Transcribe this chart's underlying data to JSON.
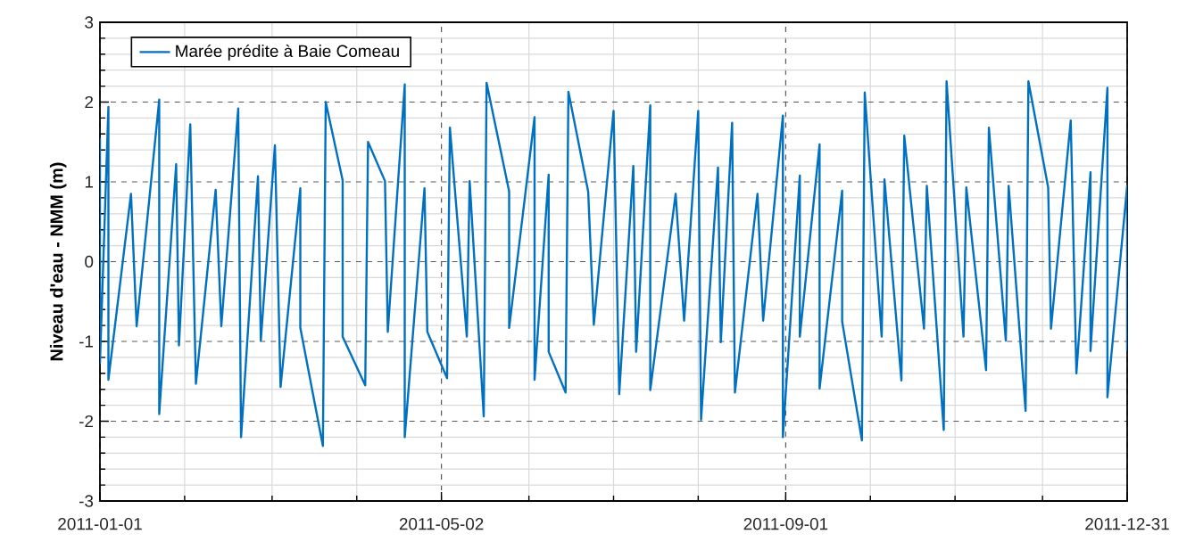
{
  "chart_data": {
    "type": "line",
    "ylabel": "Niveau d'eau - NMM (m)",
    "xlim": [
      "2011-01-01",
      "2011-12-31"
    ],
    "ylim": [
      -3,
      3
    ],
    "xticks": [
      {
        "value": "2011-01-01",
        "label": "2011-01-01"
      },
      {
        "value": "2011-01-31",
        "label": null
      },
      {
        "value": "2011-03-03",
        "label": null
      },
      {
        "value": "2011-04-02",
        "label": null
      },
      {
        "value": "2011-05-02",
        "label": "2011-05-02"
      },
      {
        "value": "2011-06-02",
        "label": null
      },
      {
        "value": "2011-07-02",
        "label": null
      },
      {
        "value": "2011-08-01",
        "label": null
      },
      {
        "value": "2011-09-01",
        "label": "2011-09-01"
      },
      {
        "value": "2011-10-01",
        "label": null
      },
      {
        "value": "2011-10-31",
        "label": null
      },
      {
        "value": "2011-12-01",
        "label": null
      },
      {
        "value": "2011-12-31",
        "label": "2011-12-31"
      }
    ],
    "yticks": [
      -3,
      {
        "value": -2.8,
        "label": null
      },
      {
        "value": -2.6,
        "label": null
      },
      {
        "value": -2.4,
        "label": null
      },
      {
        "value": -2.2,
        "label": null
      },
      -2,
      {
        "value": -1.8,
        "label": null
      },
      {
        "value": -1.6,
        "label": null
      },
      {
        "value": -1.4,
        "label": null
      },
      {
        "value": -1.2,
        "label": null
      },
      -1,
      {
        "value": -0.8,
        "label": null
      },
      {
        "value": -0.6,
        "label": null
      },
      {
        "value": -0.4,
        "label": null
      },
      {
        "value": -0.2,
        "label": null
      },
      0,
      {
        "value": 0.2,
        "label": null
      },
      {
        "value": 0.4,
        "label": null
      },
      {
        "value": 0.6,
        "label": null
      },
      {
        "value": 0.8,
        "label": null
      },
      1,
      {
        "value": 1.2,
        "label": null
      },
      {
        "value": 1.4,
        "label": null
      },
      {
        "value": 1.6,
        "label": null
      },
      {
        "value": 1.8,
        "label": null
      },
      2,
      {
        "value": 2.2,
        "label": null
      },
      {
        "value": 2.4,
        "label": null
      },
      {
        "value": 2.6,
        "label": null
      },
      {
        "value": 2.8,
        "label": null
      },
      3
    ],
    "grid": true,
    "legend": "top left",
    "series": [
      {
        "name": "Marée prédite à Baie Comeau",
        "color": "#0070c0",
        "x": [
          "2011-01-01",
          "2011-01-01",
          "2011-01-04",
          "2011-01-04",
          "2011-01-12",
          "2011-01-14",
          "2011-01-22",
          "2011-01-22",
          "2011-01-28",
          "2011-01-29",
          "2011-02-02",
          "2011-02-04",
          "2011-02-11",
          "2011-02-13",
          "2011-02-19",
          "2011-02-20",
          "2011-02-26",
          "2011-02-27",
          "2011-03-04",
          "2011-03-06",
          "2011-03-13",
          "2011-03-13",
          "2011-03-21",
          "2011-03-22",
          "2011-03-28",
          "2011-03-28",
          "2011-04-05",
          "2011-04-06",
          "2011-04-12",
          "2011-04-13",
          "2011-04-19",
          "2011-04-19",
          "2011-04-26",
          "2011-04-27",
          "2011-05-04",
          "2011-05-05",
          "2011-05-11",
          "2011-05-12",
          "2011-05-17",
          "2011-05-18",
          "2011-05-26",
          "2011-05-26",
          "2011-06-04",
          "2011-06-04",
          "2011-06-09",
          "2011-06-09",
          "2011-06-15",
          "2011-06-16",
          "2011-06-23",
          "2011-06-25",
          "2011-07-02",
          "2011-07-04",
          "2011-07-09",
          "2011-07-10",
          "2011-07-15",
          "2011-07-15",
          "2011-07-24",
          "2011-07-27",
          "2011-08-01",
          "2011-08-02",
          "2011-08-08",
          "2011-08-09",
          "2011-08-13",
          "2011-08-14",
          "2011-08-22",
          "2011-08-24",
          "2011-08-31",
          "2011-08-31",
          "2011-09-06",
          "2011-09-06",
          "2011-09-13",
          "2011-09-13",
          "2011-09-21",
          "2011-09-21",
          "2011-09-28",
          "2011-09-29",
          "2011-10-05",
          "2011-10-06",
          "2011-10-12",
          "2011-10-13",
          "2011-10-20",
          "2011-10-21",
          "2011-10-27",
          "2011-10-28",
          "2011-11-03",
          "2011-11-04",
          "2011-11-11",
          "2011-11-12",
          "2011-11-18",
          "2011-11-19",
          "2011-11-25",
          "2011-11-26",
          "2011-12-03",
          "2011-12-04",
          "2011-12-11",
          "2011-12-13",
          "2011-12-18",
          "2011-12-18",
          "2011-12-24",
          "2011-12-24",
          "2011-12-31",
          "2011-12-31"
        ],
        "values": [
          1.55,
          -1.27,
          1.94,
          -1.48,
          0.85,
          -0.81,
          2.03,
          -1.91,
          1.22,
          -1.05,
          1.72,
          -1.53,
          0.9,
          -0.81,
          1.92,
          -2.2,
          1.07,
          -0.99,
          1.46,
          -1.57,
          0.92,
          -0.83,
          -2.31,
          2.0,
          1.02,
          -0.94,
          -1.55,
          1.5,
          1.01,
          -0.88,
          2.22,
          -2.2,
          0.92,
          -0.88,
          -1.46,
          1.68,
          -0.94,
          1.01,
          -1.94,
          2.24,
          0.88,
          -0.83,
          1.81,
          -1.48,
          1.09,
          -1.13,
          -1.64,
          2.13,
          0.88,
          -0.79,
          1.89,
          -1.66,
          1.2,
          -1.13,
          1.96,
          -1.61,
          0.85,
          -0.74,
          1.89,
          -1.98,
          1.18,
          -1.01,
          1.74,
          -1.64,
          0.85,
          -0.74,
          1.83,
          -2.2,
          1.08,
          -0.94,
          1.47,
          -1.59,
          0.89,
          -0.75,
          -2.24,
          2.12,
          -0.94,
          1.03,
          -1.49,
          1.58,
          -0.84,
          0.95,
          -2.11,
          2.26,
          -0.94,
          0.93,
          -1.36,
          1.68,
          -0.99,
          0.95,
          -1.87,
          2.26,
          0.93,
          -0.84,
          1.77,
          -1.4,
          1.12,
          -1.12,
          2.18,
          -1.7,
          0.95,
          -1.12
        ]
      }
    ]
  }
}
